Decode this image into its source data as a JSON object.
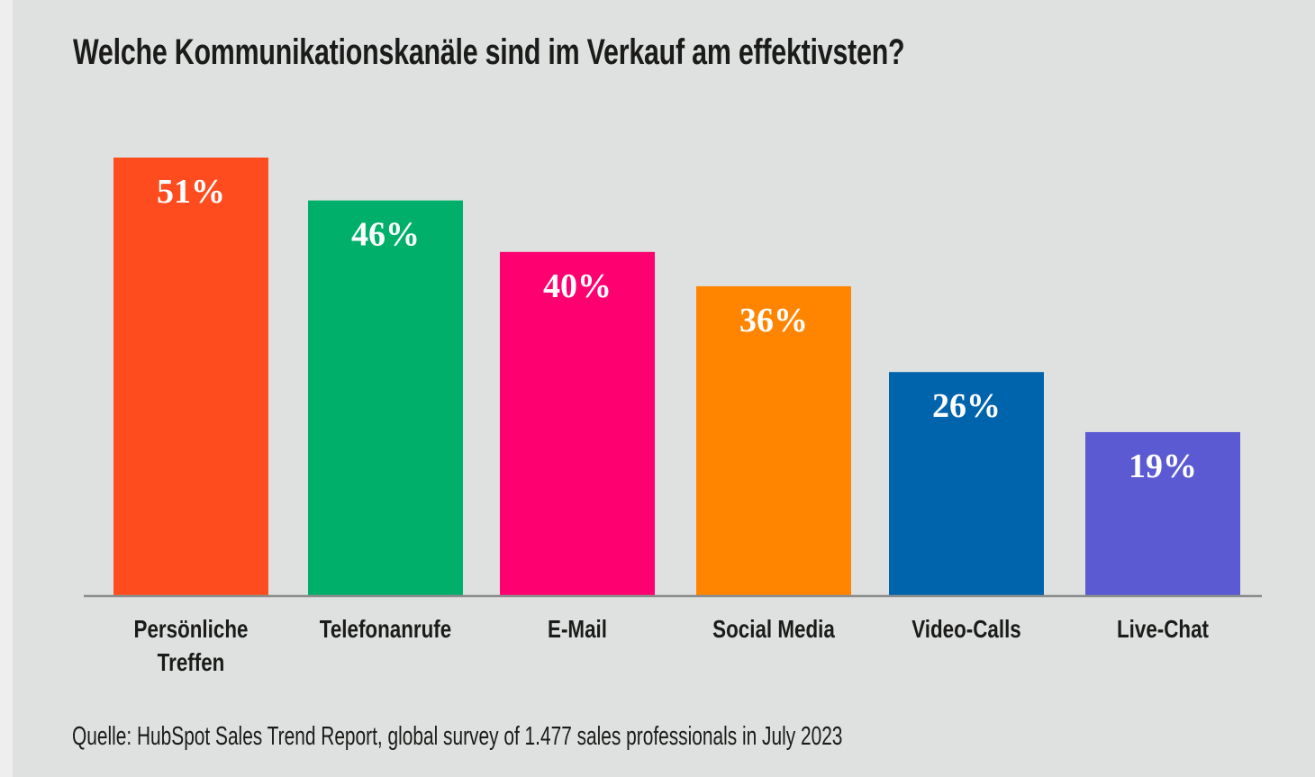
{
  "chart_data": {
    "type": "bar",
    "title": "Welche Kommunikationskanäle sind im Verkauf am effektivsten?",
    "categories": [
      [
        "Persönliche",
        "Treffen"
      ],
      [
        "Telefonanrufe"
      ],
      [
        "E-Mail"
      ],
      [
        "Social Media"
      ],
      [
        "Video-Calls"
      ],
      [
        "Live-Chat"
      ]
    ],
    "values": [
      51,
      46,
      40,
      36,
      26,
      19
    ],
    "value_labels": [
      "51%",
      "46%",
      "40%",
      "36%",
      "26%",
      "19%"
    ],
    "colors": [
      "#ff4c1f",
      "#00b06a",
      "#ff0070",
      "#ff8400",
      "#0064ad",
      "#5b5ad2"
    ],
    "unit": "%",
    "xlabel": "",
    "ylabel": "",
    "ylim": [
      0,
      51
    ],
    "grid": false,
    "legend": "none",
    "source": "Quelle: HubSpot Sales Trend Report, global survey of 1.477 sales professionals in July 2023"
  }
}
